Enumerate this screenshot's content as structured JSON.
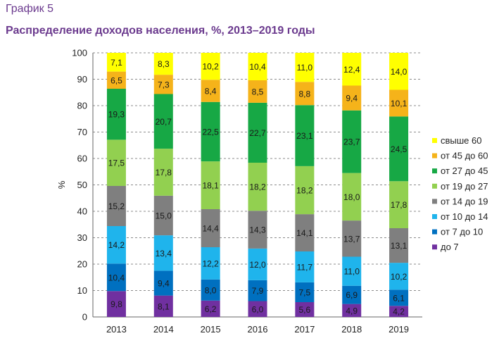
{
  "header": {
    "supertitle": "График 5",
    "title": "Распределение доходов населения, %, 2013–2019 годы"
  },
  "chart_data": {
    "type": "bar",
    "stacked": true,
    "ylabel": "%",
    "ylim": [
      0,
      100
    ],
    "yticks": [
      0,
      10,
      20,
      30,
      40,
      50,
      60,
      70,
      80,
      90,
      100
    ],
    "categories": [
      "2013",
      "2014",
      "2015",
      "2016",
      "2017",
      "2018",
      "2019"
    ],
    "series": [
      {
        "name": "до 7",
        "color": "#7030a0",
        "values": [
          "9,8",
          "8,1",
          "6,2",
          "6,0",
          "5,6",
          "4,9",
          "4,2"
        ]
      },
      {
        "name": "от 7 до 10",
        "color": "#0070c0",
        "values": [
          "10,4",
          "9,4",
          "8,0",
          "7,9",
          "7,5",
          "6,9",
          "6,1"
        ]
      },
      {
        "name": "от 10 до 14",
        "color": "#1fb4ec",
        "values": [
          "14,2",
          "13,4",
          "12,2",
          "12,0",
          "11,7",
          "11,0",
          "10,2"
        ]
      },
      {
        "name": "от 14 до 19",
        "color": "#7f7f7f",
        "values": [
          "15,2",
          "15,0",
          "14,4",
          "14,3",
          "14,1",
          "13,7",
          "13,1"
        ]
      },
      {
        "name": "от 19 до 27",
        "color": "#92d050",
        "values": [
          "17,5",
          "17,8",
          "18,1",
          "18,2",
          "18,2",
          "18,0",
          "17,8"
        ]
      },
      {
        "name": "от 27 до 45",
        "color": "#17a845",
        "values": [
          "19,3",
          "20,7",
          "22,5",
          "22,7",
          "23,1",
          "23,7",
          "24,5"
        ]
      },
      {
        "name": "от 45 до 60",
        "color": "#f5b31a",
        "values": [
          "6,5",
          "7,3",
          "8,4",
          "8,5",
          "8,8",
          "9,4",
          "10,1"
        ]
      },
      {
        "name": "свыше 60",
        "color": "#ffff00",
        "values": [
          "7,1",
          "8,3",
          "10,2",
          "10,4",
          "11,0",
          "12,4",
          "14,0"
        ]
      }
    ],
    "legend_position": "right",
    "legend_order": [
      "свыше 60",
      "от 45 до 60",
      "от 27 до 45",
      "от 19 до 27",
      "от 14 до 19",
      "от 10 до 14",
      "от 7 до 10",
      "до 7"
    ],
    "grid": true
  }
}
